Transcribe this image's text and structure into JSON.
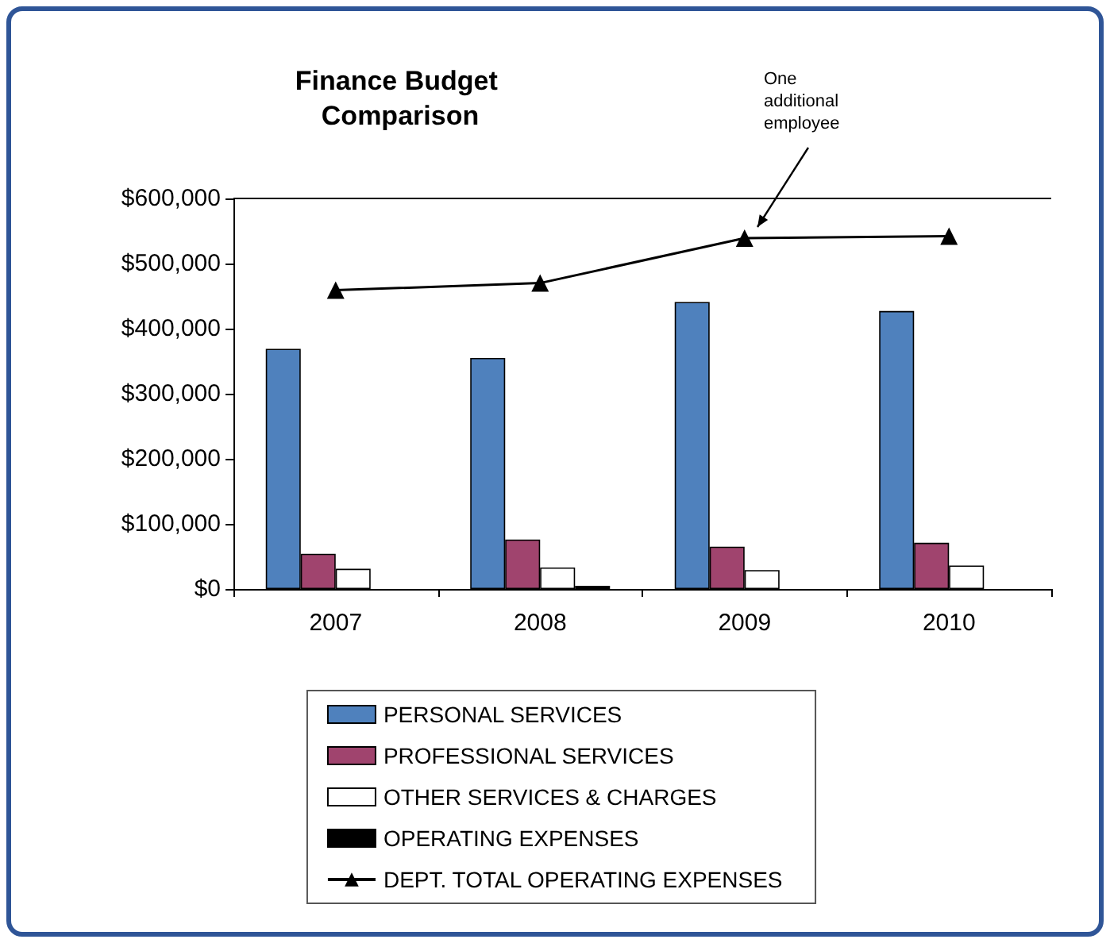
{
  "chart_data": {
    "type": "bar",
    "title": "Finance Budget Comparison",
    "categories": [
      "2007",
      "2008",
      "2009",
      "2010"
    ],
    "series": [
      {
        "name": "PERSONAL SERVICES",
        "color": "#4f81bd",
        "values": [
          369000,
          355000,
          441000,
          427000
        ]
      },
      {
        "name": "PROFESSIONAL SERVICES",
        "color": "#a0446e",
        "values": [
          54000,
          76000,
          65000,
          71000
        ]
      },
      {
        "name": "OTHER SERVICES & CHARGES",
        "color": "#ffffff",
        "values": [
          31000,
          33000,
          29000,
          36000
        ]
      },
      {
        "name": "OPERATING EXPENSES",
        "color": "#000000",
        "values": [
          null,
          5000,
          null,
          null
        ]
      },
      {
        "name": "DEPT. TOTAL OPERATING EXPENSES",
        "type": "line",
        "color": "#000000",
        "marker": "triangle",
        "values": [
          459000,
          470000,
          539000,
          542000
        ]
      }
    ],
    "ylim": [
      0,
      600000
    ],
    "yticks": [
      {
        "value": 0,
        "label": "$0"
      },
      {
        "value": 100000,
        "label": "$100,000"
      },
      {
        "value": 200000,
        "label": "$200,000"
      },
      {
        "value": 300000,
        "label": "$300,000"
      },
      {
        "value": 400000,
        "label": "$400,000"
      },
      {
        "value": 500000,
        "label": "$500,000"
      },
      {
        "value": 600000,
        "label": "$600,000"
      }
    ],
    "grid": false,
    "legend": "bottom",
    "annotations": [
      "One additional employee"
    ]
  }
}
